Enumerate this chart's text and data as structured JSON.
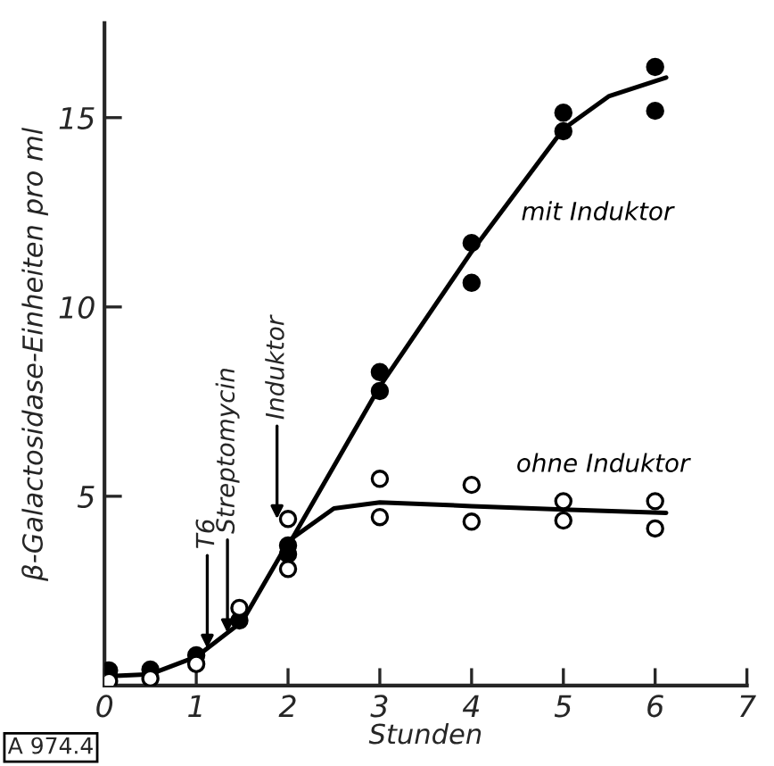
{
  "chart_data": {
    "type": "scatter",
    "xlabel": "Stunden",
    "ylabel": "β-Galactosidase-Einheiten pro ml",
    "xlim": [
      0,
      7
    ],
    "ylim": [
      0,
      17.5
    ],
    "xticks": [
      0,
      1,
      2,
      3,
      4,
      5,
      6,
      7
    ],
    "yticks": [
      5,
      10,
      15
    ],
    "grid": false,
    "legend": false,
    "series": [
      {
        "name": "mit Induktor",
        "marker": "circle",
        "color": "#000000",
        "x": [
          0.05,
          0.5,
          1,
          1.47,
          2,
          2,
          3,
          3,
          4,
          4,
          5,
          5,
          6,
          6
        ],
        "values": [
          0.4,
          0.42,
          0.8,
          1.72,
          3.47,
          3.7,
          7.78,
          8.28,
          11.69,
          10.64,
          15.13,
          14.64,
          16.34,
          15.18
        ]
      },
      {
        "name": "ohne Induktor",
        "marker": "circle",
        "color": "#000000",
        "x": [
          0.05,
          0.5,
          1,
          1.47,
          2,
          2,
          3,
          3,
          4,
          4,
          5,
          5,
          6,
          6
        ],
        "values": [
          0.12,
          0.19,
          0.57,
          2.05,
          4.4,
          3.08,
          5.46,
          4.45,
          5.3,
          4.33,
          4.87,
          4.36,
          4.87,
          4.15
        ]
      },
      {
        "type": "line",
        "marker": "none",
        "color": "#000000",
        "x": [
          0.07,
          0.5,
          1,
          1.5,
          2,
          2.05,
          3,
          4,
          5,
          5.5,
          6.12
        ],
        "values": [
          0.25,
          0.3,
          0.76,
          1.69,
          3.78,
          3.9,
          7.9,
          11.46,
          14.7,
          15.57,
          16.06
        ]
      },
      {
        "type": "line",
        "marker": "none",
        "color": "#000000",
        "x": [
          2.05,
          2.5,
          3,
          4,
          5,
          6.12
        ],
        "values": [
          3.9,
          4.68,
          4.84,
          4.74,
          4.65,
          4.56
        ]
      }
    ],
    "annotations": [
      {
        "text": "T6",
        "x": 1.12,
        "y": 0.98
      },
      {
        "text": "Streptomycin",
        "x": 1.34,
        "y": 1.39
      },
      {
        "text": "Induktor",
        "x": 1.88,
        "y": 4.4
      },
      "A 974.4"
    ]
  }
}
